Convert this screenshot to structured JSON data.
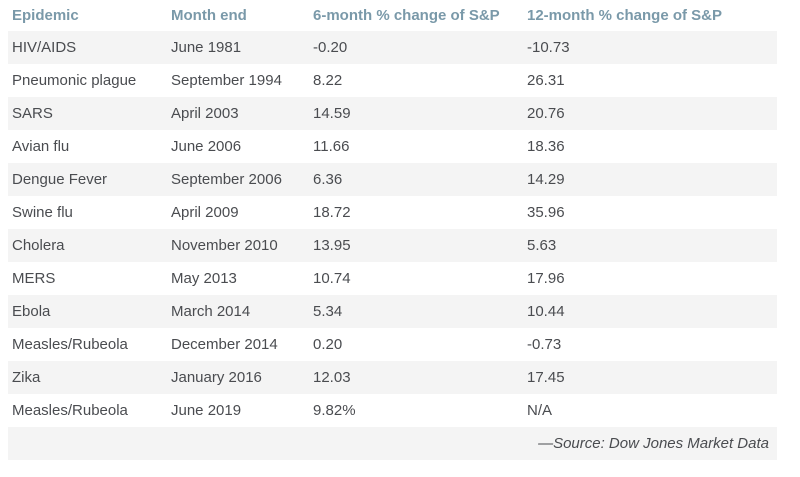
{
  "chart_data": {
    "type": "table",
    "columns": [
      "Epidemic",
      "Month end",
      "6-month % change of S&P",
      "12-month % change of S&P"
    ],
    "rows": [
      [
        "HIV/AIDS",
        "June 1981",
        "-0.20",
        "-10.73"
      ],
      [
        "Pneumonic plague",
        "September 1994",
        "8.22",
        "26.31"
      ],
      [
        "SARS",
        "April 2003",
        "14.59",
        "20.76"
      ],
      [
        "Avian flu",
        "June 2006",
        "11.66",
        "18.36"
      ],
      [
        "Dengue Fever",
        "September 2006",
        "6.36",
        "14.29"
      ],
      [
        "Swine flu",
        "April 2009",
        "18.72",
        "35.96"
      ],
      [
        "Cholera",
        "November 2010",
        "13.95",
        "5.63"
      ],
      [
        "MERS",
        "May 2013",
        "10.74",
        "17.96"
      ],
      [
        "Ebola",
        "March 2014",
        "5.34",
        "10.44"
      ],
      [
        "Measles/Rubeola",
        "December 2014",
        "0.20",
        "-0.73"
      ],
      [
        "Zika",
        "January 2016",
        "12.03",
        "17.45"
      ],
      [
        "Measles/Rubeola",
        "June 2019",
        "9.82%",
        "N/A"
      ]
    ],
    "source_note": "—Source: Dow Jones Market Data",
    "layout": {
      "striped_rows": "odd",
      "header_position": "top"
    }
  },
  "colors": {
    "header_text": "#7a99a9",
    "body_text": "#4a4c50",
    "row_stripe": "#f4f4f4",
    "background": "#ffffff"
  }
}
